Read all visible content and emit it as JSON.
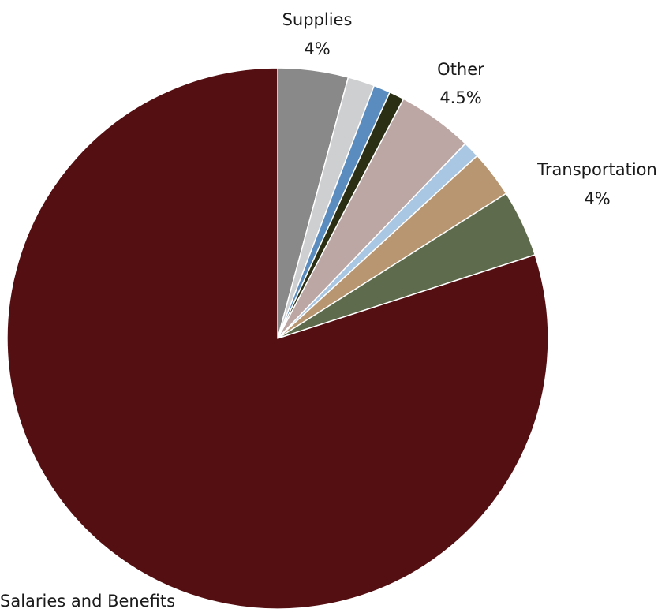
{
  "chart_data": {
    "type": "pie",
    "title": "",
    "start_angle_deg": 0,
    "direction": "clockwise",
    "slices": [
      {
        "label": "Supplies",
        "value_label": "4%",
        "value": 4.2,
        "color": "#898989"
      },
      {
        "label": "",
        "value_label": "",
        "value": 1.6,
        "color": "#cdcfd1"
      },
      {
        "label": "",
        "value_label": "",
        "value": 1.0,
        "color": "#5b8cbf"
      },
      {
        "label": "",
        "value_label": "",
        "value": 0.9,
        "color": "#2b2f14"
      },
      {
        "label": "Other",
        "value_label": "4.5%",
        "value": 4.5,
        "color": "#bca7a5"
      },
      {
        "label": "",
        "value_label": "",
        "value": 1.0,
        "color": "#a9c6e3"
      },
      {
        "label": "",
        "value_label": "",
        "value": 2.8,
        "color": "#b99672"
      },
      {
        "label": "Transportation",
        "value_label": "4%",
        "value": 4.0,
        "color": "#5e6b4c"
      },
      {
        "label": "Salaries and Benefits",
        "value_label": "",
        "value": 80.0,
        "color": "#540f12"
      }
    ]
  }
}
